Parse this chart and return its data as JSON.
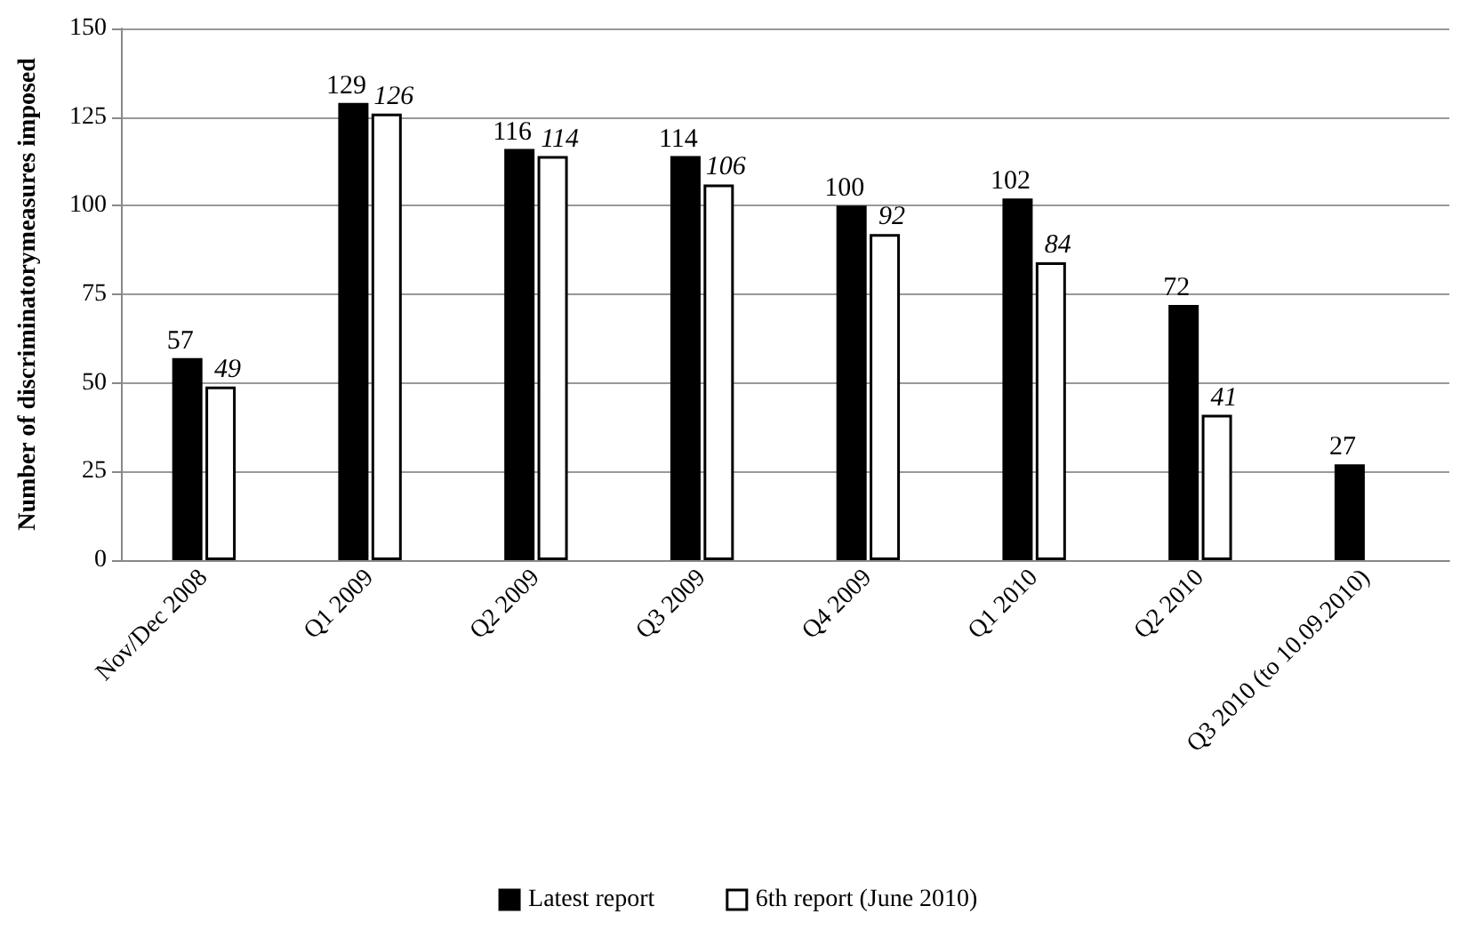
{
  "chart_data": {
    "type": "bar",
    "ylabel": "Number of discriminatorymeasures imposed",
    "categories": [
      "Nov/Dec 2008",
      "Q1 2009",
      "Q2 2009",
      "Q3 2009",
      "Q4 2009",
      "Q1 2010",
      "Q2 2010",
      "Q3 2010 (to 10.09.2010)"
    ],
    "series": [
      {
        "name": "Latest report",
        "color": "#000000",
        "values": [
          57,
          129,
          116,
          114,
          100,
          102,
          72,
          27
        ]
      },
      {
        "name": "6th report (June 2010)",
        "color": "#ffffff",
        "values": [
          49,
          126,
          114,
          106,
          92,
          84,
          41,
          null
        ]
      }
    ],
    "ylim": [
      0,
      150
    ],
    "yticks": [
      0,
      25,
      50,
      75,
      100,
      125,
      150
    ],
    "grid": "y",
    "legend": "bottom",
    "data_labels": true
  }
}
